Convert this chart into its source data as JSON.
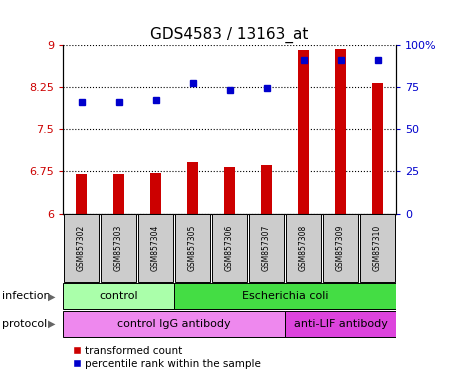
{
  "title": "GDS4583 / 13163_at",
  "samples": [
    "GSM857302",
    "GSM857303",
    "GSM857304",
    "GSM857305",
    "GSM857306",
    "GSM857307",
    "GSM857308",
    "GSM857309",
    "GSM857310"
  ],
  "transformed_count": [
    6.7,
    6.7,
    6.72,
    6.92,
    6.82,
    6.87,
    8.9,
    8.92,
    8.32
  ],
  "percentile_rank": [
    66,
    66,
    67,
    77,
    73,
    74,
    91,
    91,
    91
  ],
  "ylim_left": [
    6,
    9
  ],
  "ylim_right": [
    0,
    100
  ],
  "yticks_left": [
    6,
    6.75,
    7.5,
    8.25,
    9
  ],
  "yticks_right": [
    0,
    25,
    50,
    75,
    100
  ],
  "ytick_labels_left": [
    "6",
    "6.75",
    "7.5",
    "8.25",
    "9"
  ],
  "ytick_labels_right": [
    "0",
    "25",
    "50",
    "75",
    "100%"
  ],
  "bar_color": "#cc0000",
  "dot_color": "#0000cc",
  "bar_bottom": 6,
  "infection_groups": [
    {
      "label": "control",
      "start": 0,
      "end": 3,
      "color": "#aaffaa"
    },
    {
      "label": "Escherichia coli",
      "start": 3,
      "end": 9,
      "color": "#44dd44"
    }
  ],
  "protocol_groups": [
    {
      "label": "control IgG antibody",
      "start": 0,
      "end": 6,
      "color": "#ee88ee"
    },
    {
      "label": "anti-LIF antibody",
      "start": 6,
      "end": 9,
      "color": "#dd44dd"
    }
  ],
  "legend_red_label": "transformed count",
  "legend_blue_label": "percentile rank within the sample",
  "background_color": "#ffffff",
  "sample_box_color": "#cccccc",
  "infection_label": "infection",
  "protocol_label": "protocol",
  "bar_width": 0.3
}
